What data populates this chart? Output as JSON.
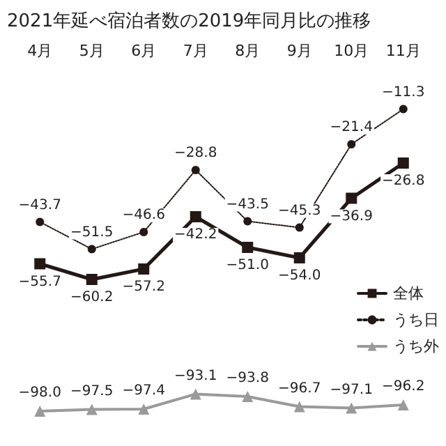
{
  "chart_data": {
    "type": "line",
    "title": "2021年延べ宿泊者数の2019年同月比の推移",
    "categories": [
      "4月",
      "5月",
      "6月",
      "7月",
      "8月",
      "9月",
      "10月",
      "11月"
    ],
    "series": [
      {
        "name": "全体",
        "color": "#231815",
        "marker": "square",
        "line_style": "solid",
        "values": [
          -55.7,
          -60.2,
          -57.2,
          -42.2,
          -51.0,
          -54.0,
          -36.9,
          -26.8
        ],
        "value_labels": [
          "−55.7",
          "−60.2",
          "−57.2",
          "−42.2",
          "−51.0",
          "−54.0",
          "−36.9",
          "−26.8"
        ]
      },
      {
        "name": "うち日",
        "color": "#231815",
        "marker": "circle",
        "line_style": "dotted",
        "values": [
          -43.7,
          -51.5,
          -46.6,
          -28.8,
          -43.5,
          -45.3,
          -21.4,
          -11.3
        ],
        "value_labels": [
          "−43.7",
          "−51.5",
          "−46.6",
          "−28.8",
          "−43.5",
          "−45.3",
          "−21.4",
          "−11.3"
        ]
      },
      {
        "name": "うち外",
        "color": "#9a9a9a",
        "marker": "triangle",
        "line_style": "solid",
        "values": [
          -98.0,
          -97.5,
          -97.4,
          -93.1,
          -93.8,
          -96.7,
          -97.1,
          -96.2
        ],
        "value_labels": [
          "−98.0",
          "−97.5",
          "−97.4",
          "−93.1",
          "−93.8",
          "−96.7",
          "−97.1",
          "−96.2"
        ]
      }
    ],
    "legend": "right"
  }
}
